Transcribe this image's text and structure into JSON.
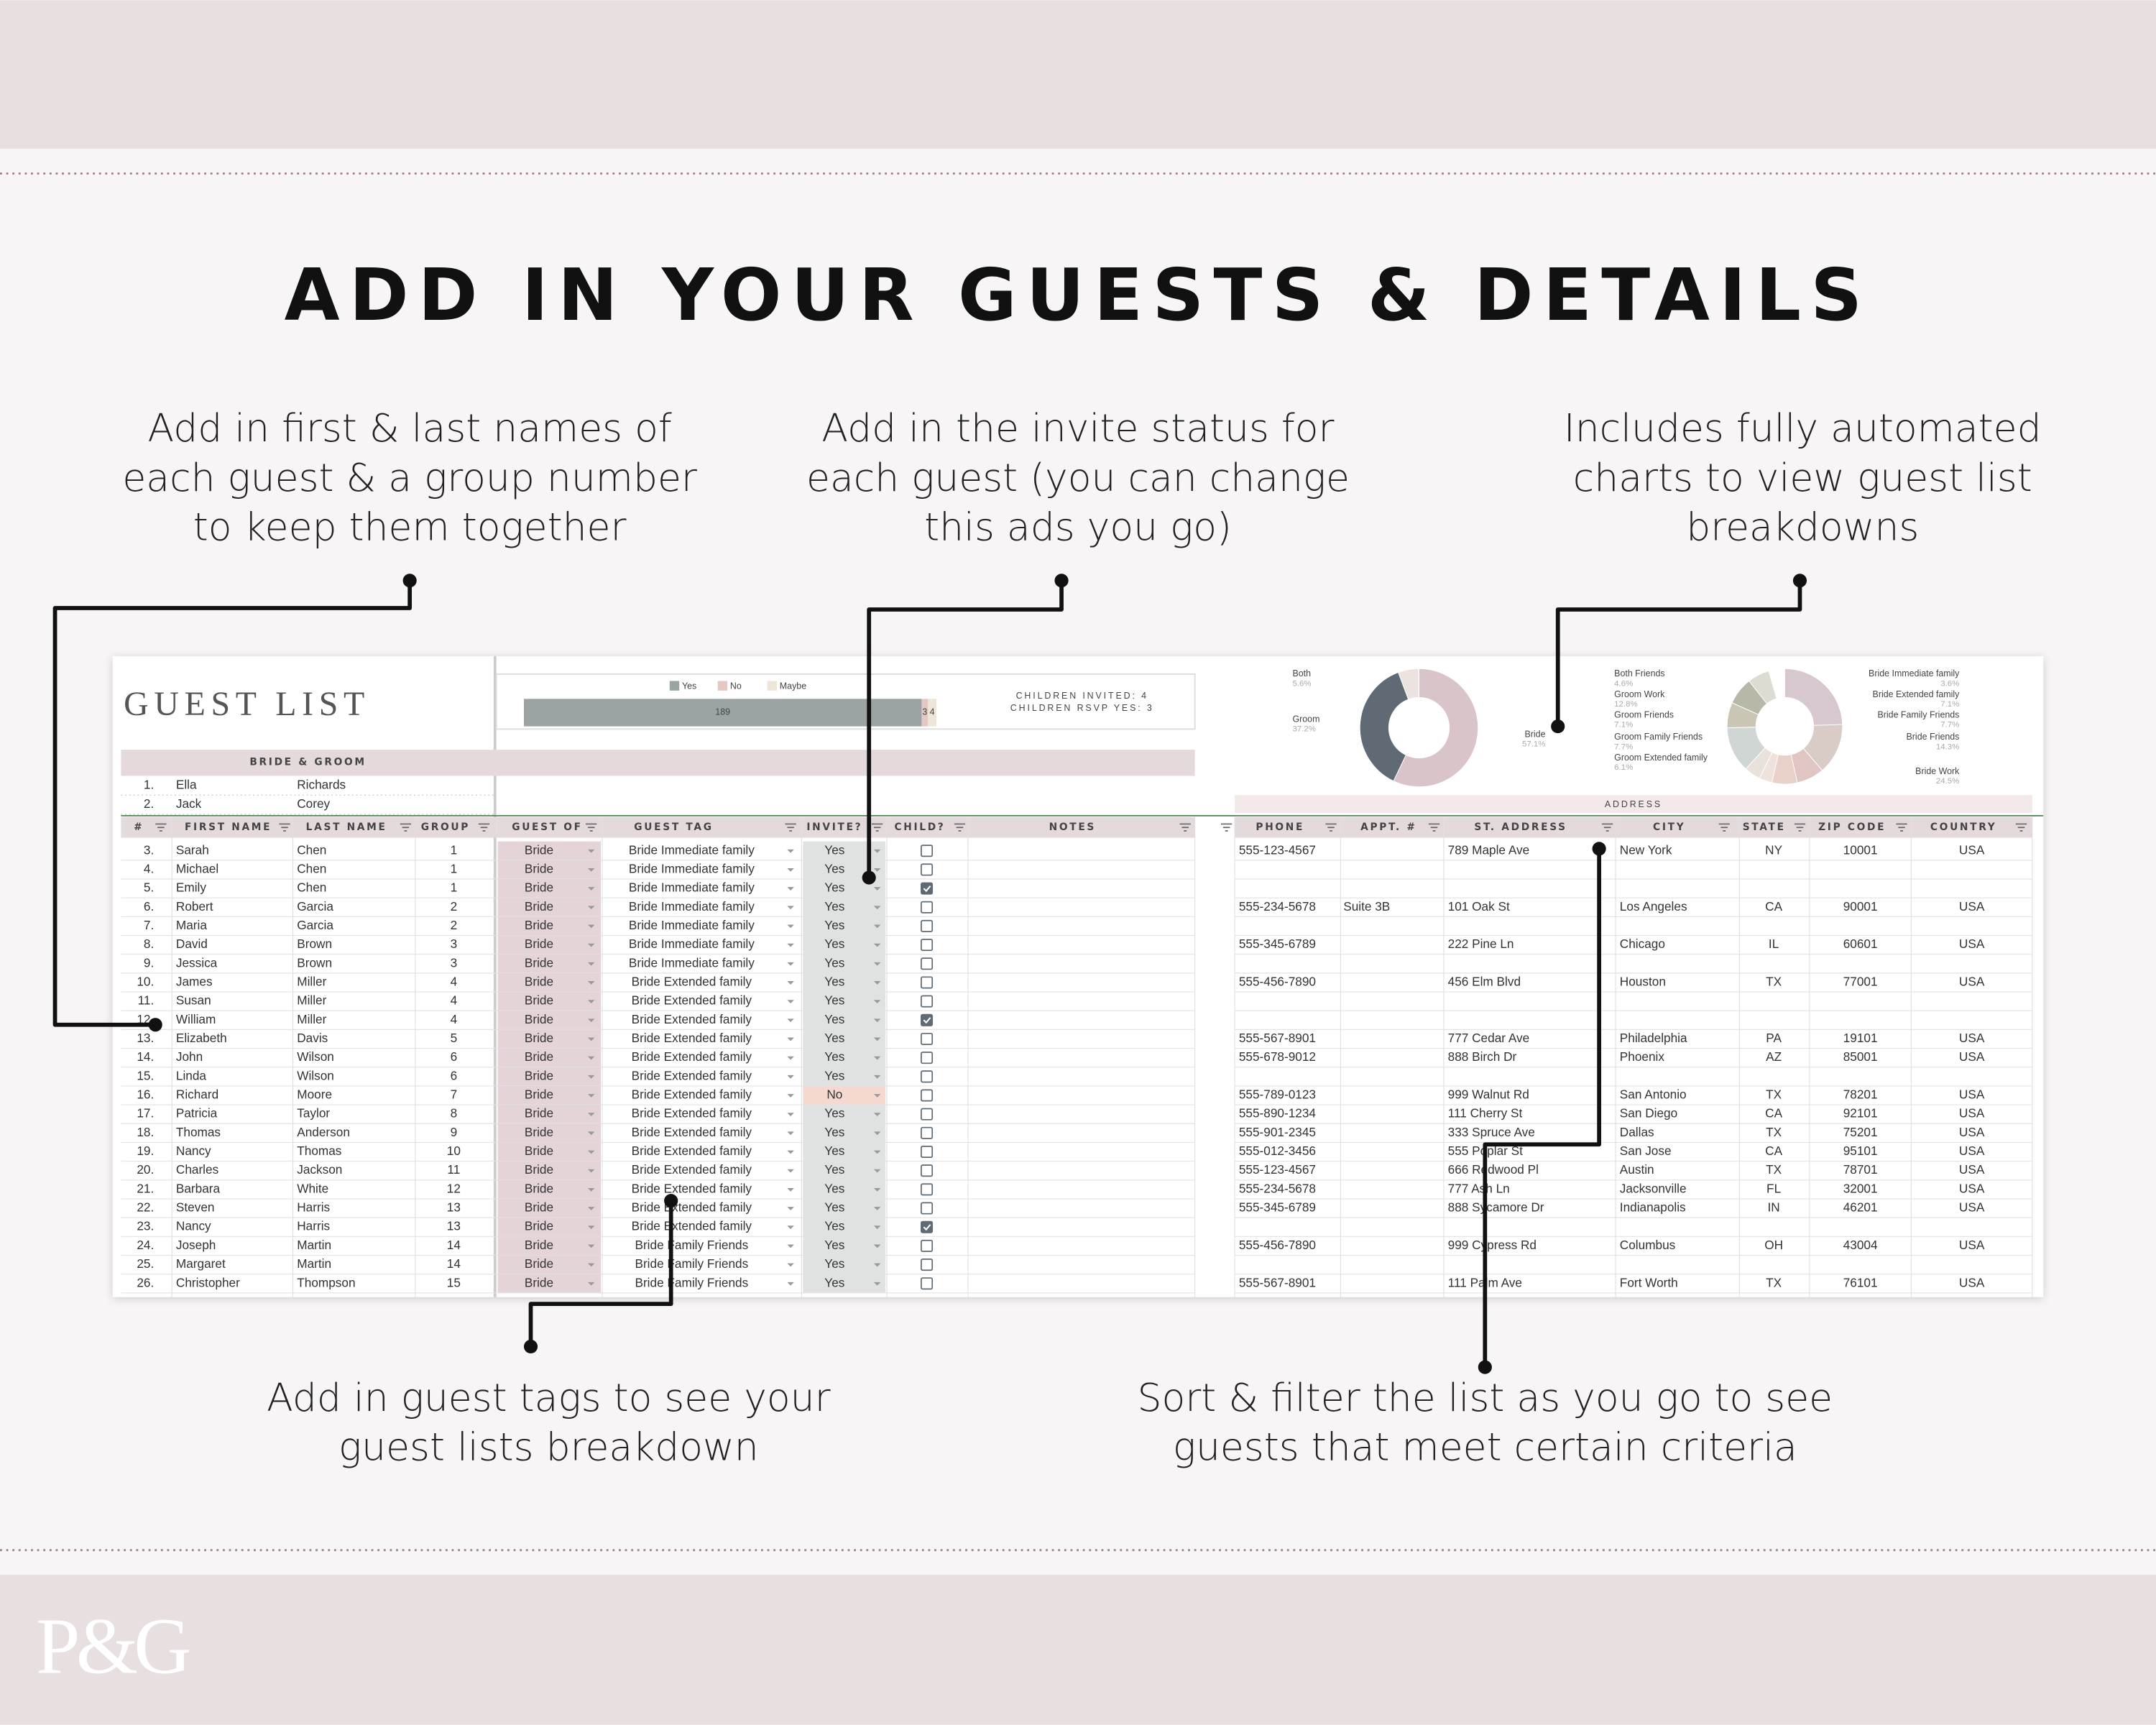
{
  "header": {
    "title": "ADD IN YOUR GUESTS & DETAILS"
  },
  "callouts": [
    {
      "lines": [
        "Add in first & last names of",
        "each guest & a group number",
        "to keep them together"
      ]
    },
    {
      "lines": [
        "Add in the invite status for",
        "each guest (you can change",
        "this ads you go)"
      ]
    },
    {
      "lines": [
        "Includes fully automated",
        "charts to view guest list",
        "breakdowns"
      ]
    },
    {
      "lines": [
        "Add in guest tags to see your",
        "guest lists breakdown"
      ]
    },
    {
      "lines": [
        "Sort & filter the list as you go to see",
        "guests that meet certain criteria"
      ]
    }
  ],
  "logo": "P&G",
  "sheet": {
    "title": "GUEST LIST",
    "group_label": "BRIDE & GROOM",
    "children_invited": "CHILDREN INVITED: 4",
    "children_rsvp": "CHILDREN RSVP YES: 3",
    "address_label": "ADDRESS",
    "pinned": [
      [
        "1.",
        "Ella",
        "Richards"
      ],
      [
        "2.",
        "Jack",
        "Corey"
      ]
    ],
    "columns": [
      "#",
      "FIRST NAME",
      "LAST NAME",
      "GROUP",
      "GUEST OF",
      "GUEST TAG",
      "INVITE?",
      "CHILD?",
      "NOTES"
    ],
    "address_columns": [
      "PHONE",
      "APPT. #",
      "ST. ADDRESS",
      "CITY",
      "STATE",
      "ZIP CODE",
      "COUNTRY"
    ],
    "rows": [
      [
        "3.",
        "Sarah",
        "Chen",
        "1",
        "Bride",
        "Bride Immediate family",
        "Yes",
        false
      ],
      [
        "4.",
        "Michael",
        "Chen",
        "1",
        "Bride",
        "Bride Immediate family",
        "Yes",
        false
      ],
      [
        "5.",
        "Emily",
        "Chen",
        "1",
        "Bride",
        "Bride Immediate family",
        "Yes",
        true
      ],
      [
        "6.",
        "Robert",
        "Garcia",
        "2",
        "Bride",
        "Bride Immediate family",
        "Yes",
        false
      ],
      [
        "7.",
        "Maria",
        "Garcia",
        "2",
        "Bride",
        "Bride Immediate family",
        "Yes",
        false
      ],
      [
        "8.",
        "David",
        "Brown",
        "3",
        "Bride",
        "Bride Immediate family",
        "Yes",
        false
      ],
      [
        "9.",
        "Jessica",
        "Brown",
        "3",
        "Bride",
        "Bride Immediate family",
        "Yes",
        false
      ],
      [
        "10.",
        "James",
        "Miller",
        "4",
        "Bride",
        "Bride Extended family",
        "Yes",
        false
      ],
      [
        "11.",
        "Susan",
        "Miller",
        "4",
        "Bride",
        "Bride Extended family",
        "Yes",
        false
      ],
      [
        "12.",
        "William",
        "Miller",
        "4",
        "Bride",
        "Bride Extended family",
        "Yes",
        true
      ],
      [
        "13.",
        "Elizabeth",
        "Davis",
        "5",
        "Bride",
        "Bride Extended family",
        "Yes",
        false
      ],
      [
        "14.",
        "John",
        "Wilson",
        "6",
        "Bride",
        "Bride Extended family",
        "Yes",
        false
      ],
      [
        "15.",
        "Linda",
        "Wilson",
        "6",
        "Bride",
        "Bride Extended family",
        "Yes",
        false
      ],
      [
        "16.",
        "Richard",
        "Moore",
        "7",
        "Bride",
        "Bride Extended family",
        "No",
        false
      ],
      [
        "17.",
        "Patricia",
        "Taylor",
        "8",
        "Bride",
        "Bride Extended family",
        "Yes",
        false
      ],
      [
        "18.",
        "Thomas",
        "Anderson",
        "9",
        "Bride",
        "Bride Extended family",
        "Yes",
        false
      ],
      [
        "19.",
        "Nancy",
        "Thomas",
        "10",
        "Bride",
        "Bride Extended family",
        "Yes",
        false
      ],
      [
        "20.",
        "Charles",
        "Jackson",
        "11",
        "Bride",
        "Bride Extended family",
        "Yes",
        false
      ],
      [
        "21.",
        "Barbara",
        "White",
        "12",
        "Bride",
        "Bride Extended family",
        "Yes",
        false
      ],
      [
        "22.",
        "Steven",
        "Harris",
        "13",
        "Bride",
        "Bride Extended family",
        "Yes",
        false
      ],
      [
        "23.",
        "Nancy",
        "Harris",
        "13",
        "Bride",
        "Bride Extended family",
        "Yes",
        true
      ],
      [
        "24.",
        "Joseph",
        "Martin",
        "14",
        "Bride",
        "Bride Family Friends",
        "Yes",
        false
      ],
      [
        "25.",
        "Margaret",
        "Martin",
        "14",
        "Bride",
        "Bride Family Friends",
        "Yes",
        false
      ],
      [
        "26.",
        "Christopher",
        "Thompson",
        "15",
        "Bride",
        "Bride Family Friends",
        "Yes",
        false
      ]
    ],
    "contacts": [
      [
        "555-123-4567",
        null,
        "789 Maple Ave",
        "New York",
        "NY",
        "10001",
        "USA"
      ],
      null,
      null,
      [
        "555-234-5678",
        "Suite 3B",
        "101 Oak St",
        "Los Angeles",
        "CA",
        "90001",
        "USA"
      ],
      null,
      [
        "555-345-6789",
        null,
        "222 Pine Ln",
        "Chicago",
        "IL",
        "60601",
        "USA"
      ],
      null,
      [
        "555-456-7890",
        null,
        "456 Elm Blvd",
        "Houston",
        "TX",
        "77001",
        "USA"
      ],
      null,
      null,
      [
        "555-567-8901",
        null,
        "777 Cedar Ave",
        "Philadelphia",
        "PA",
        "19101",
        "USA"
      ],
      [
        "555-678-9012",
        null,
        "888 Birch Dr",
        "Phoenix",
        "AZ",
        "85001",
        "USA"
      ],
      null,
      [
        "555-789-0123",
        null,
        "999 Walnut Rd",
        "San Antonio",
        "TX",
        "78201",
        "USA"
      ],
      [
        "555-890-1234",
        null,
        "111 Cherry St",
        "San Diego",
        "CA",
        "92101",
        "USA"
      ],
      [
        "555-901-2345",
        null,
        "333 Spruce Ave",
        "Dallas",
        "TX",
        "75201",
        "USA"
      ],
      [
        "555-012-3456",
        null,
        "555 Poplar St",
        "San Jose",
        "CA",
        "95101",
        "USA"
      ],
      [
        "555-123-4567",
        null,
        "666 Redwood Pl",
        "Austin",
        "TX",
        "78701",
        "USA"
      ],
      [
        "555-234-5678",
        null,
        "777 Ash Ln",
        "Jacksonville",
        "FL",
        "32001",
        "USA"
      ],
      [
        "555-345-6789",
        null,
        "888 Sycamore Dr",
        "Indianapolis",
        "IN",
        "46201",
        "USA"
      ],
      null,
      [
        "555-456-7890",
        null,
        "999 Cypress Rd",
        "Columbus",
        "OH",
        "43004",
        "USA"
      ],
      null,
      [
        "555-567-8901",
        null,
        "111 Palm Ave",
        "Fort Worth",
        "TX",
        "76101",
        "USA"
      ]
    ]
  },
  "chart_data": [
    {
      "type": "bar",
      "stacked": true,
      "orientation": "horizontal",
      "series": [
        {
          "name": "Yes",
          "color": "#9ba4a3",
          "values": [
            189
          ]
        },
        {
          "name": "No",
          "color": "#e6c8c2",
          "values": [
            3
          ]
        },
        {
          "name": "Maybe",
          "color": "#efe4d8",
          "values": [
            4
          ]
        }
      ]
    },
    {
      "type": "pie",
      "donut": true,
      "categories": [
        "Bride",
        "Groom",
        "Both"
      ],
      "values": [
        57.1,
        37.2,
        5.6
      ],
      "value_labels": [
        "57.1%",
        "37.2%",
        "5.6%"
      ],
      "colors": [
        "#d9c4c9",
        "#5f6a75",
        "#ece3e1"
      ]
    },
    {
      "type": "pie",
      "donut": true,
      "categories": [
        "Bride Work",
        "Bride Friends",
        "Bride Family Friends",
        "Bride Extended family",
        "Bride Immediate family",
        "Both Friends",
        "Groom Work",
        "Groom Friends",
        "Groom Family Friends",
        "Groom Extended family"
      ],
      "values": [
        24.5,
        14.3,
        7.7,
        7.1,
        3.6,
        4.6,
        12.8,
        7.1,
        7.7,
        6.1
      ],
      "value_labels": [
        "24.5%",
        "14.3%",
        "7.7%",
        "7.1%",
        "3.6%",
        "4.6%",
        "12.8%",
        "7.1%",
        "7.7%",
        "6.1%"
      ],
      "colors": [
        "#d7c8cf",
        "#d9cbc6",
        "#e0c5c2",
        "#e9d0c8",
        "#efe1dc",
        "#e8e1dc",
        "#cfd6d3",
        "#c9c6b6",
        "#b8b8a8",
        "#dcdcd2"
      ]
    }
  ]
}
